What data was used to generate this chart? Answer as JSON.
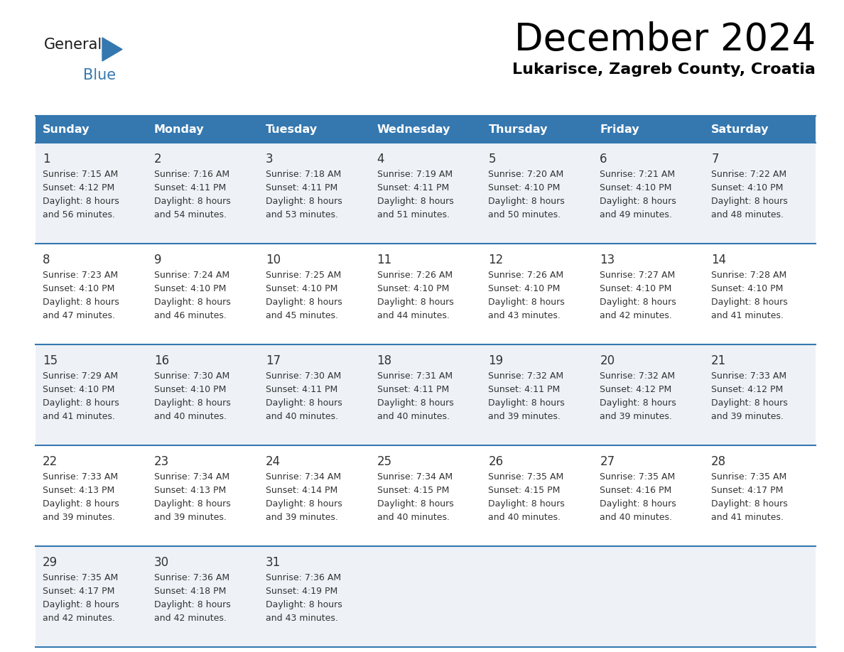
{
  "title": "December 2024",
  "subtitle": "Lukarisce, Zagreb County, Croatia",
  "header_color": "#3578b0",
  "header_text_color": "#ffffff",
  "cell_bg_light": "#eef2f7",
  "cell_bg_white": "#ffffff",
  "border_color": "#3578b0",
  "text_color": "#333333",
  "days_of_week": [
    "Sunday",
    "Monday",
    "Tuesday",
    "Wednesday",
    "Thursday",
    "Friday",
    "Saturday"
  ],
  "calendar": [
    [
      {
        "day": "1",
        "sunrise": "7:15 AM",
        "sunset": "4:12 PM",
        "daylight_h": "8 hours",
        "daylight_m": "and 56 minutes."
      },
      {
        "day": "2",
        "sunrise": "7:16 AM",
        "sunset": "4:11 PM",
        "daylight_h": "8 hours",
        "daylight_m": "and 54 minutes."
      },
      {
        "day": "3",
        "sunrise": "7:18 AM",
        "sunset": "4:11 PM",
        "daylight_h": "8 hours",
        "daylight_m": "and 53 minutes."
      },
      {
        "day": "4",
        "sunrise": "7:19 AM",
        "sunset": "4:11 PM",
        "daylight_h": "8 hours",
        "daylight_m": "and 51 minutes."
      },
      {
        "day": "5",
        "sunrise": "7:20 AM",
        "sunset": "4:10 PM",
        "daylight_h": "8 hours",
        "daylight_m": "and 50 minutes."
      },
      {
        "day": "6",
        "sunrise": "7:21 AM",
        "sunset": "4:10 PM",
        "daylight_h": "8 hours",
        "daylight_m": "and 49 minutes."
      },
      {
        "day": "7",
        "sunrise": "7:22 AM",
        "sunset": "4:10 PM",
        "daylight_h": "8 hours",
        "daylight_m": "and 48 minutes."
      }
    ],
    [
      {
        "day": "8",
        "sunrise": "7:23 AM",
        "sunset": "4:10 PM",
        "daylight_h": "8 hours",
        "daylight_m": "and 47 minutes."
      },
      {
        "day": "9",
        "sunrise": "7:24 AM",
        "sunset": "4:10 PM",
        "daylight_h": "8 hours",
        "daylight_m": "and 46 minutes."
      },
      {
        "day": "10",
        "sunrise": "7:25 AM",
        "sunset": "4:10 PM",
        "daylight_h": "8 hours",
        "daylight_m": "and 45 minutes."
      },
      {
        "day": "11",
        "sunrise": "7:26 AM",
        "sunset": "4:10 PM",
        "daylight_h": "8 hours",
        "daylight_m": "and 44 minutes."
      },
      {
        "day": "12",
        "sunrise": "7:26 AM",
        "sunset": "4:10 PM",
        "daylight_h": "8 hours",
        "daylight_m": "and 43 minutes."
      },
      {
        "day": "13",
        "sunrise": "7:27 AM",
        "sunset": "4:10 PM",
        "daylight_h": "8 hours",
        "daylight_m": "and 42 minutes."
      },
      {
        "day": "14",
        "sunrise": "7:28 AM",
        "sunset": "4:10 PM",
        "daylight_h": "8 hours",
        "daylight_m": "and 41 minutes."
      }
    ],
    [
      {
        "day": "15",
        "sunrise": "7:29 AM",
        "sunset": "4:10 PM",
        "daylight_h": "8 hours",
        "daylight_m": "and 41 minutes."
      },
      {
        "day": "16",
        "sunrise": "7:30 AM",
        "sunset": "4:10 PM",
        "daylight_h": "8 hours",
        "daylight_m": "and 40 minutes."
      },
      {
        "day": "17",
        "sunrise": "7:30 AM",
        "sunset": "4:11 PM",
        "daylight_h": "8 hours",
        "daylight_m": "and 40 minutes."
      },
      {
        "day": "18",
        "sunrise": "7:31 AM",
        "sunset": "4:11 PM",
        "daylight_h": "8 hours",
        "daylight_m": "and 40 minutes."
      },
      {
        "day": "19",
        "sunrise": "7:32 AM",
        "sunset": "4:11 PM",
        "daylight_h": "8 hours",
        "daylight_m": "and 39 minutes."
      },
      {
        "day": "20",
        "sunrise": "7:32 AM",
        "sunset": "4:12 PM",
        "daylight_h": "8 hours",
        "daylight_m": "and 39 minutes."
      },
      {
        "day": "21",
        "sunrise": "7:33 AM",
        "sunset": "4:12 PM",
        "daylight_h": "8 hours",
        "daylight_m": "and 39 minutes."
      }
    ],
    [
      {
        "day": "22",
        "sunrise": "7:33 AM",
        "sunset": "4:13 PM",
        "daylight_h": "8 hours",
        "daylight_m": "and 39 minutes."
      },
      {
        "day": "23",
        "sunrise": "7:34 AM",
        "sunset": "4:13 PM",
        "daylight_h": "8 hours",
        "daylight_m": "and 39 minutes."
      },
      {
        "day": "24",
        "sunrise": "7:34 AM",
        "sunset": "4:14 PM",
        "daylight_h": "8 hours",
        "daylight_m": "and 39 minutes."
      },
      {
        "day": "25",
        "sunrise": "7:34 AM",
        "sunset": "4:15 PM",
        "daylight_h": "8 hours",
        "daylight_m": "and 40 minutes."
      },
      {
        "day": "26",
        "sunrise": "7:35 AM",
        "sunset": "4:15 PM",
        "daylight_h": "8 hours",
        "daylight_m": "and 40 minutes."
      },
      {
        "day": "27",
        "sunrise": "7:35 AM",
        "sunset": "4:16 PM",
        "daylight_h": "8 hours",
        "daylight_m": "and 40 minutes."
      },
      {
        "day": "28",
        "sunrise": "7:35 AM",
        "sunset": "4:17 PM",
        "daylight_h": "8 hours",
        "daylight_m": "and 41 minutes."
      }
    ],
    [
      {
        "day": "29",
        "sunrise": "7:35 AM",
        "sunset": "4:17 PM",
        "daylight_h": "8 hours",
        "daylight_m": "and 42 minutes."
      },
      {
        "day": "30",
        "sunrise": "7:36 AM",
        "sunset": "4:18 PM",
        "daylight_h": "8 hours",
        "daylight_m": "and 42 minutes."
      },
      {
        "day": "31",
        "sunrise": "7:36 AM",
        "sunset": "4:19 PM",
        "daylight_h": "8 hours",
        "daylight_m": "and 43 minutes."
      },
      null,
      null,
      null,
      null
    ]
  ]
}
